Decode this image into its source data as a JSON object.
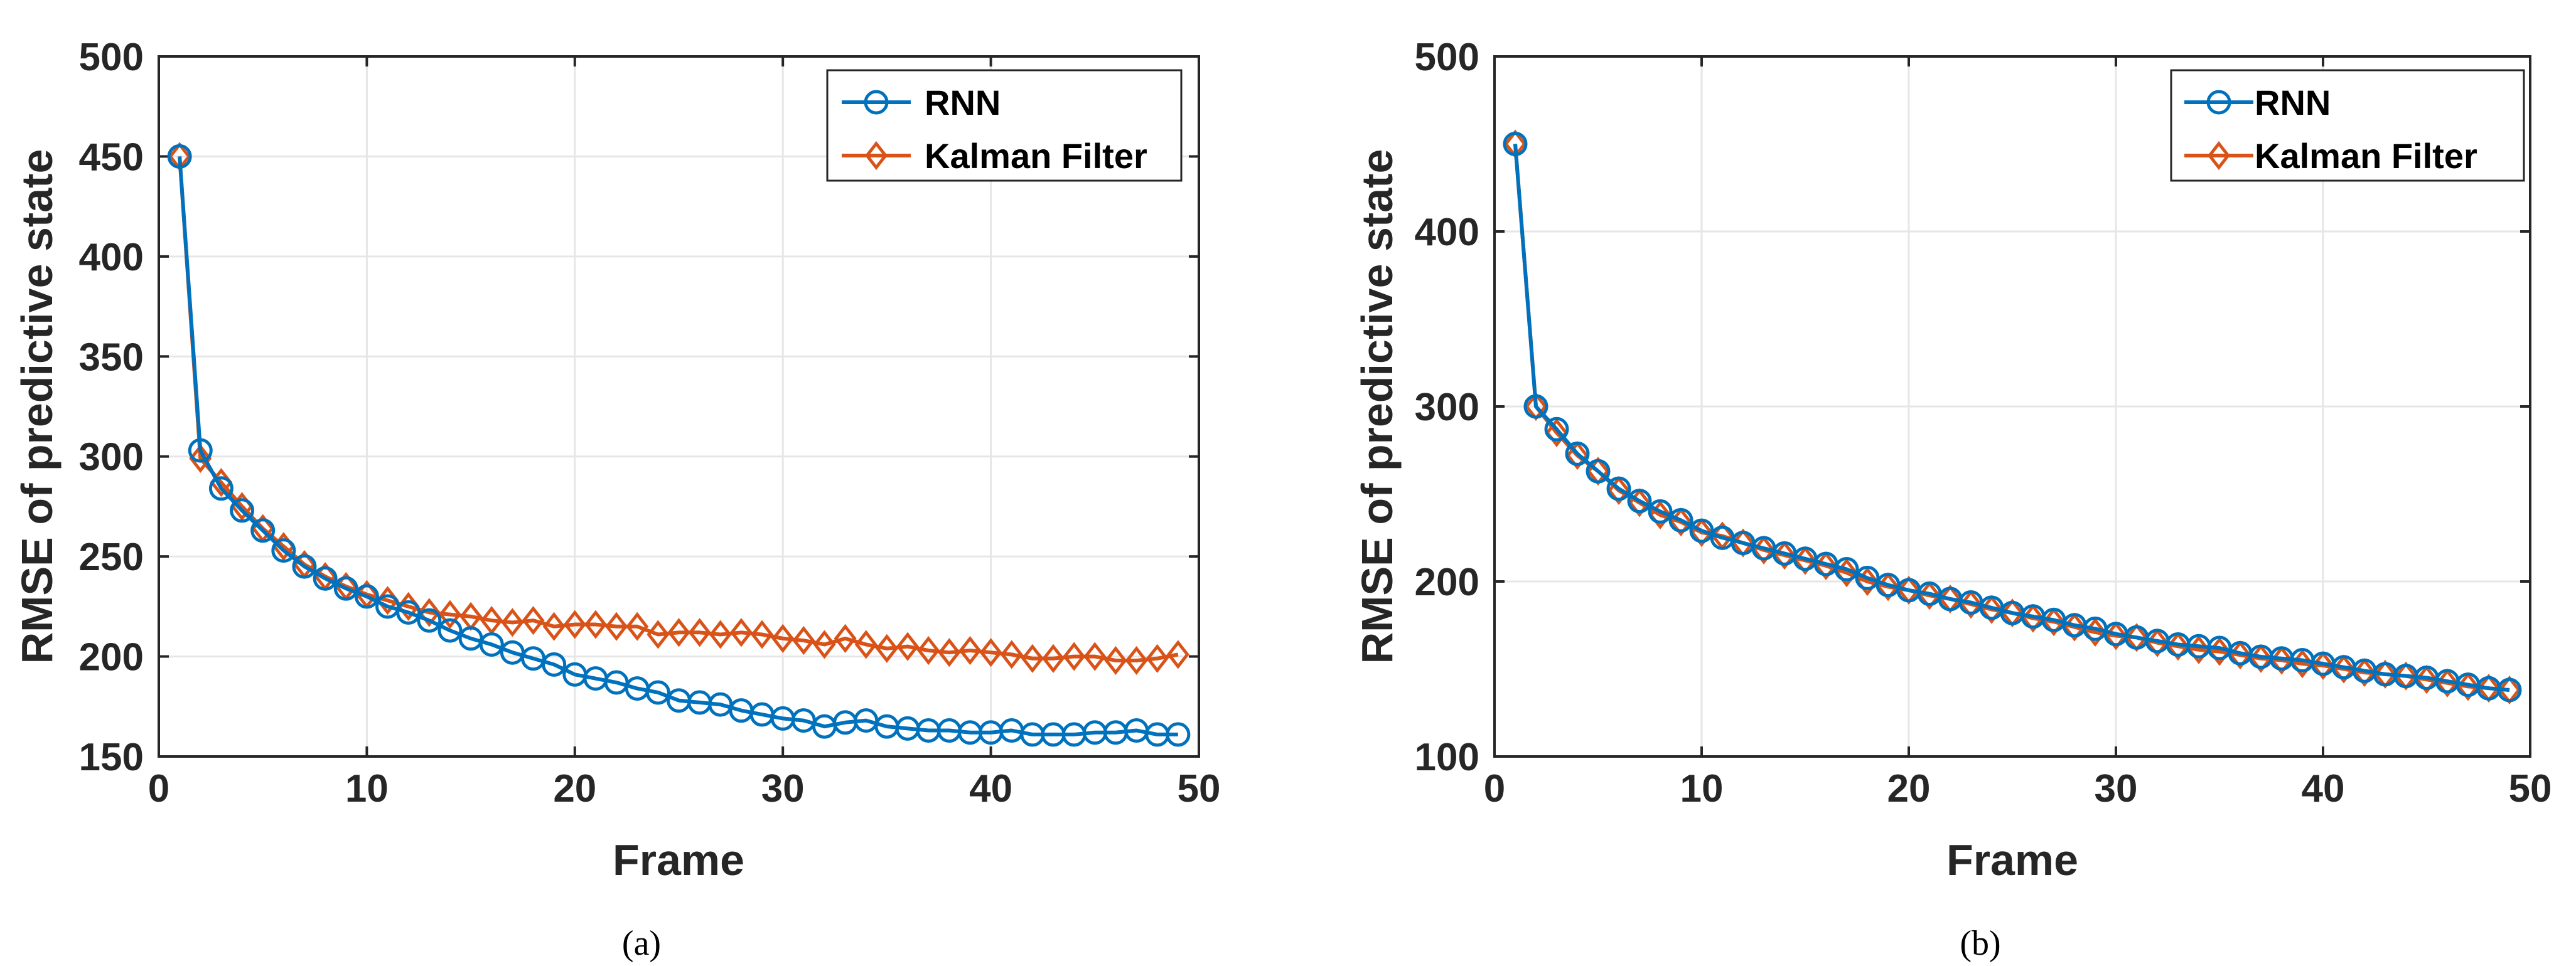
{
  "figure": {
    "captions": [
      "(a)",
      "(b)"
    ]
  },
  "chart_data": [
    {
      "type": "line",
      "title": "",
      "xlabel": "Frame",
      "ylabel": "RMSE of predictive state",
      "xlim": [
        0,
        50
      ],
      "ylim": [
        150,
        500
      ],
      "xticks": [
        0,
        10,
        20,
        30,
        40,
        50
      ],
      "yticks": [
        150,
        200,
        250,
        300,
        350,
        400,
        450,
        500
      ],
      "grid": true,
      "legend_position": "top-right",
      "x": [
        1,
        2,
        3,
        4,
        5,
        6,
        7,
        8,
        9,
        10,
        11,
        12,
        13,
        14,
        15,
        16,
        17,
        18,
        19,
        20,
        21,
        22,
        23,
        24,
        25,
        26,
        27,
        28,
        29,
        30,
        31,
        32,
        33,
        34,
        35,
        36,
        37,
        38,
        39,
        40,
        41,
        42,
        43,
        44,
        45,
        46,
        47,
        48,
        49
      ],
      "series": [
        {
          "name": "RNN",
          "color": "#0072BD",
          "marker": "circle",
          "values": [
            450,
            303,
            284,
            273,
            263,
            253,
            245,
            239,
            234,
            230,
            225,
            222,
            218,
            213,
            209,
            206,
            202,
            199,
            196,
            191,
            189,
            187,
            184,
            182,
            178,
            177,
            176,
            173,
            171,
            169,
            168,
            165,
            167,
            168,
            165,
            164,
            163,
            163,
            162,
            162,
            163,
            161,
            161,
            161,
            162,
            162,
            163,
            161,
            161
          ]
        },
        {
          "name": "Kalman Filter",
          "color": "#D95319",
          "marker": "diamond",
          "values": [
            450,
            299,
            287,
            275,
            264,
            255,
            246,
            240,
            235,
            231,
            228,
            225,
            222,
            221,
            220,
            218,
            217,
            218,
            215,
            216,
            216,
            215,
            215,
            211,
            212,
            212,
            211,
            212,
            211,
            209,
            208,
            206,
            209,
            206,
            204,
            205,
            203,
            202,
            203,
            202,
            201,
            199,
            199,
            200,
            200,
            198,
            198,
            199,
            201
          ]
        }
      ]
    },
    {
      "type": "line",
      "title": "",
      "xlabel": "Frame",
      "ylabel": "RMSE of predictive state",
      "xlim": [
        0,
        50
      ],
      "ylim": [
        100,
        500
      ],
      "xticks": [
        0,
        10,
        20,
        30,
        40,
        50
      ],
      "yticks": [
        100,
        200,
        300,
        400,
        500
      ],
      "grid": true,
      "legend_position": "top-right",
      "x": [
        1,
        2,
        3,
        4,
        5,
        6,
        7,
        8,
        9,
        10,
        11,
        12,
        13,
        14,
        15,
        16,
        17,
        18,
        19,
        20,
        21,
        22,
        23,
        24,
        25,
        26,
        27,
        28,
        29,
        30,
        31,
        32,
        33,
        34,
        35,
        36,
        37,
        38,
        39,
        40,
        41,
        42,
        43,
        44,
        45,
        46,
        47,
        48,
        49
      ],
      "series": [
        {
          "name": "RNN",
          "color": "#0072BD",
          "marker": "circle",
          "values": [
            450,
            300,
            287,
            273,
            263,
            253,
            246,
            240,
            235,
            229,
            225,
            222,
            219,
            216,
            213,
            210,
            207,
            202,
            198,
            195,
            193,
            190,
            188,
            185,
            182,
            180,
            178,
            175,
            173,
            170,
            168,
            166,
            164,
            163,
            162,
            159,
            157,
            156,
            155,
            153,
            151,
            149,
            147,
            146,
            145,
            143,
            141,
            139,
            138
          ]
        },
        {
          "name": "Kalman Filter",
          "color": "#D95319",
          "marker": "diamond",
          "values": [
            450,
            300,
            285,
            272,
            263,
            252,
            245,
            238,
            234,
            228,
            226,
            222,
            218,
            215,
            212,
            209,
            205,
            200,
            197,
            195,
            192,
            190,
            187,
            184,
            182,
            179,
            177,
            174,
            171,
            169,
            168,
            165,
            163,
            161,
            160,
            158,
            156,
            155,
            153,
            152,
            150,
            148,
            147,
            146,
            144,
            142,
            140,
            139,
            138
          ]
        }
      ]
    }
  ]
}
